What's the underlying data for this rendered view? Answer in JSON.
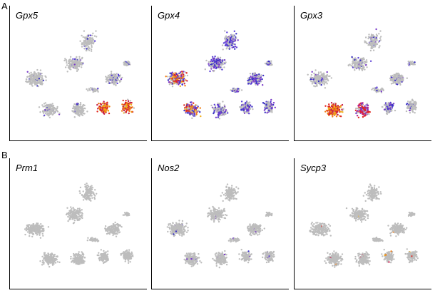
{
  "rows": [
    {
      "label": "A",
      "panels": [
        {
          "title": "Gpx5"
        },
        {
          "title": "Gpx4"
        },
        {
          "title": "Gpx3"
        }
      ]
    },
    {
      "label": "B",
      "panels": [
        {
          "title": "Prm1"
        },
        {
          "title": "Nos2"
        },
        {
          "title": "Sycp3"
        }
      ]
    }
  ]
}
